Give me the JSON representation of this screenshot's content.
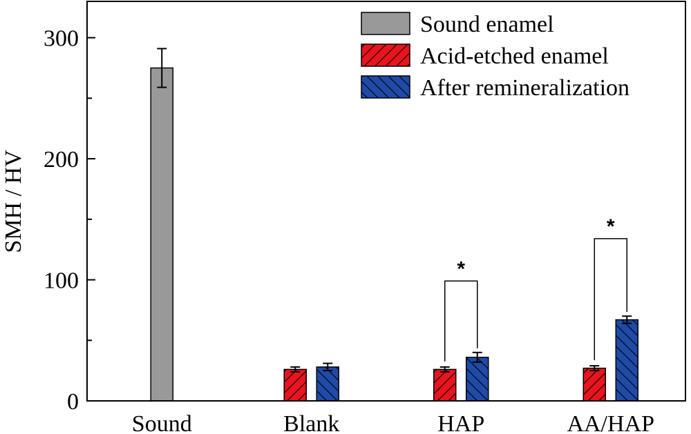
{
  "chart_data": {
    "type": "bar",
    "ylabel": "SMH / HV",
    "xlabel": "",
    "ylim": [
      0,
      330
    ],
    "yticks": [
      0,
      100,
      200,
      300
    ],
    "categories": [
      "Sound",
      "Blank",
      "HAP",
      "AA/HAP"
    ],
    "series": [
      {
        "name": "Sound enamel",
        "color": "#999999",
        "pattern": "none",
        "values": [
          275,
          null,
          null,
          null
        ],
        "errors": [
          16,
          null,
          null,
          null
        ]
      },
      {
        "name": "Acid-etched enamel",
        "color": "#e8141e",
        "pattern": "hatch-forward",
        "values": [
          null,
          26,
          26,
          27
        ],
        "errors": [
          null,
          2,
          2,
          2
        ]
      },
      {
        "name": "After remineralization",
        "color": "#1f4aa8",
        "pattern": "hatch-backward",
        "values": [
          null,
          28,
          36,
          67
        ],
        "errors": [
          null,
          3,
          4,
          3
        ]
      }
    ],
    "significance": [
      {
        "category": "HAP",
        "label": "*",
        "bracket_top": 99
      },
      {
        "category": "AA/HAP",
        "label": "*",
        "bracket_top": 134
      }
    ],
    "legend": "top-right",
    "grid": false
  }
}
